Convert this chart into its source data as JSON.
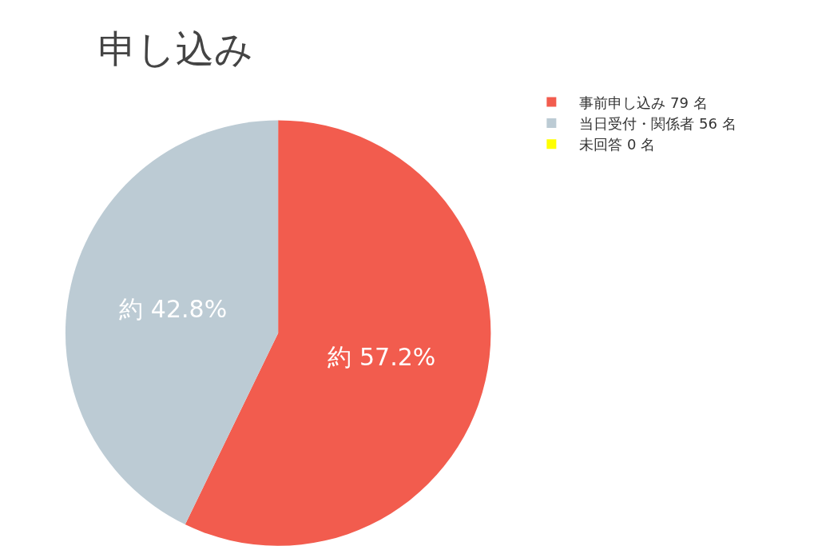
{
  "chart_data": {
    "type": "pie",
    "title": "申し込み",
    "categories": [
      "事前申し込み 79 名",
      "当日受付・関係者 56 名",
      "未回答 0 名"
    ],
    "values": [
      57.2,
      42.8,
      0
    ],
    "value_labels": [
      "約 57.2%",
      "約 42.8%",
      null
    ],
    "colors": [
      "#f25c4e",
      "#bccbd4",
      "#ffff00"
    ],
    "legend": "top right"
  }
}
